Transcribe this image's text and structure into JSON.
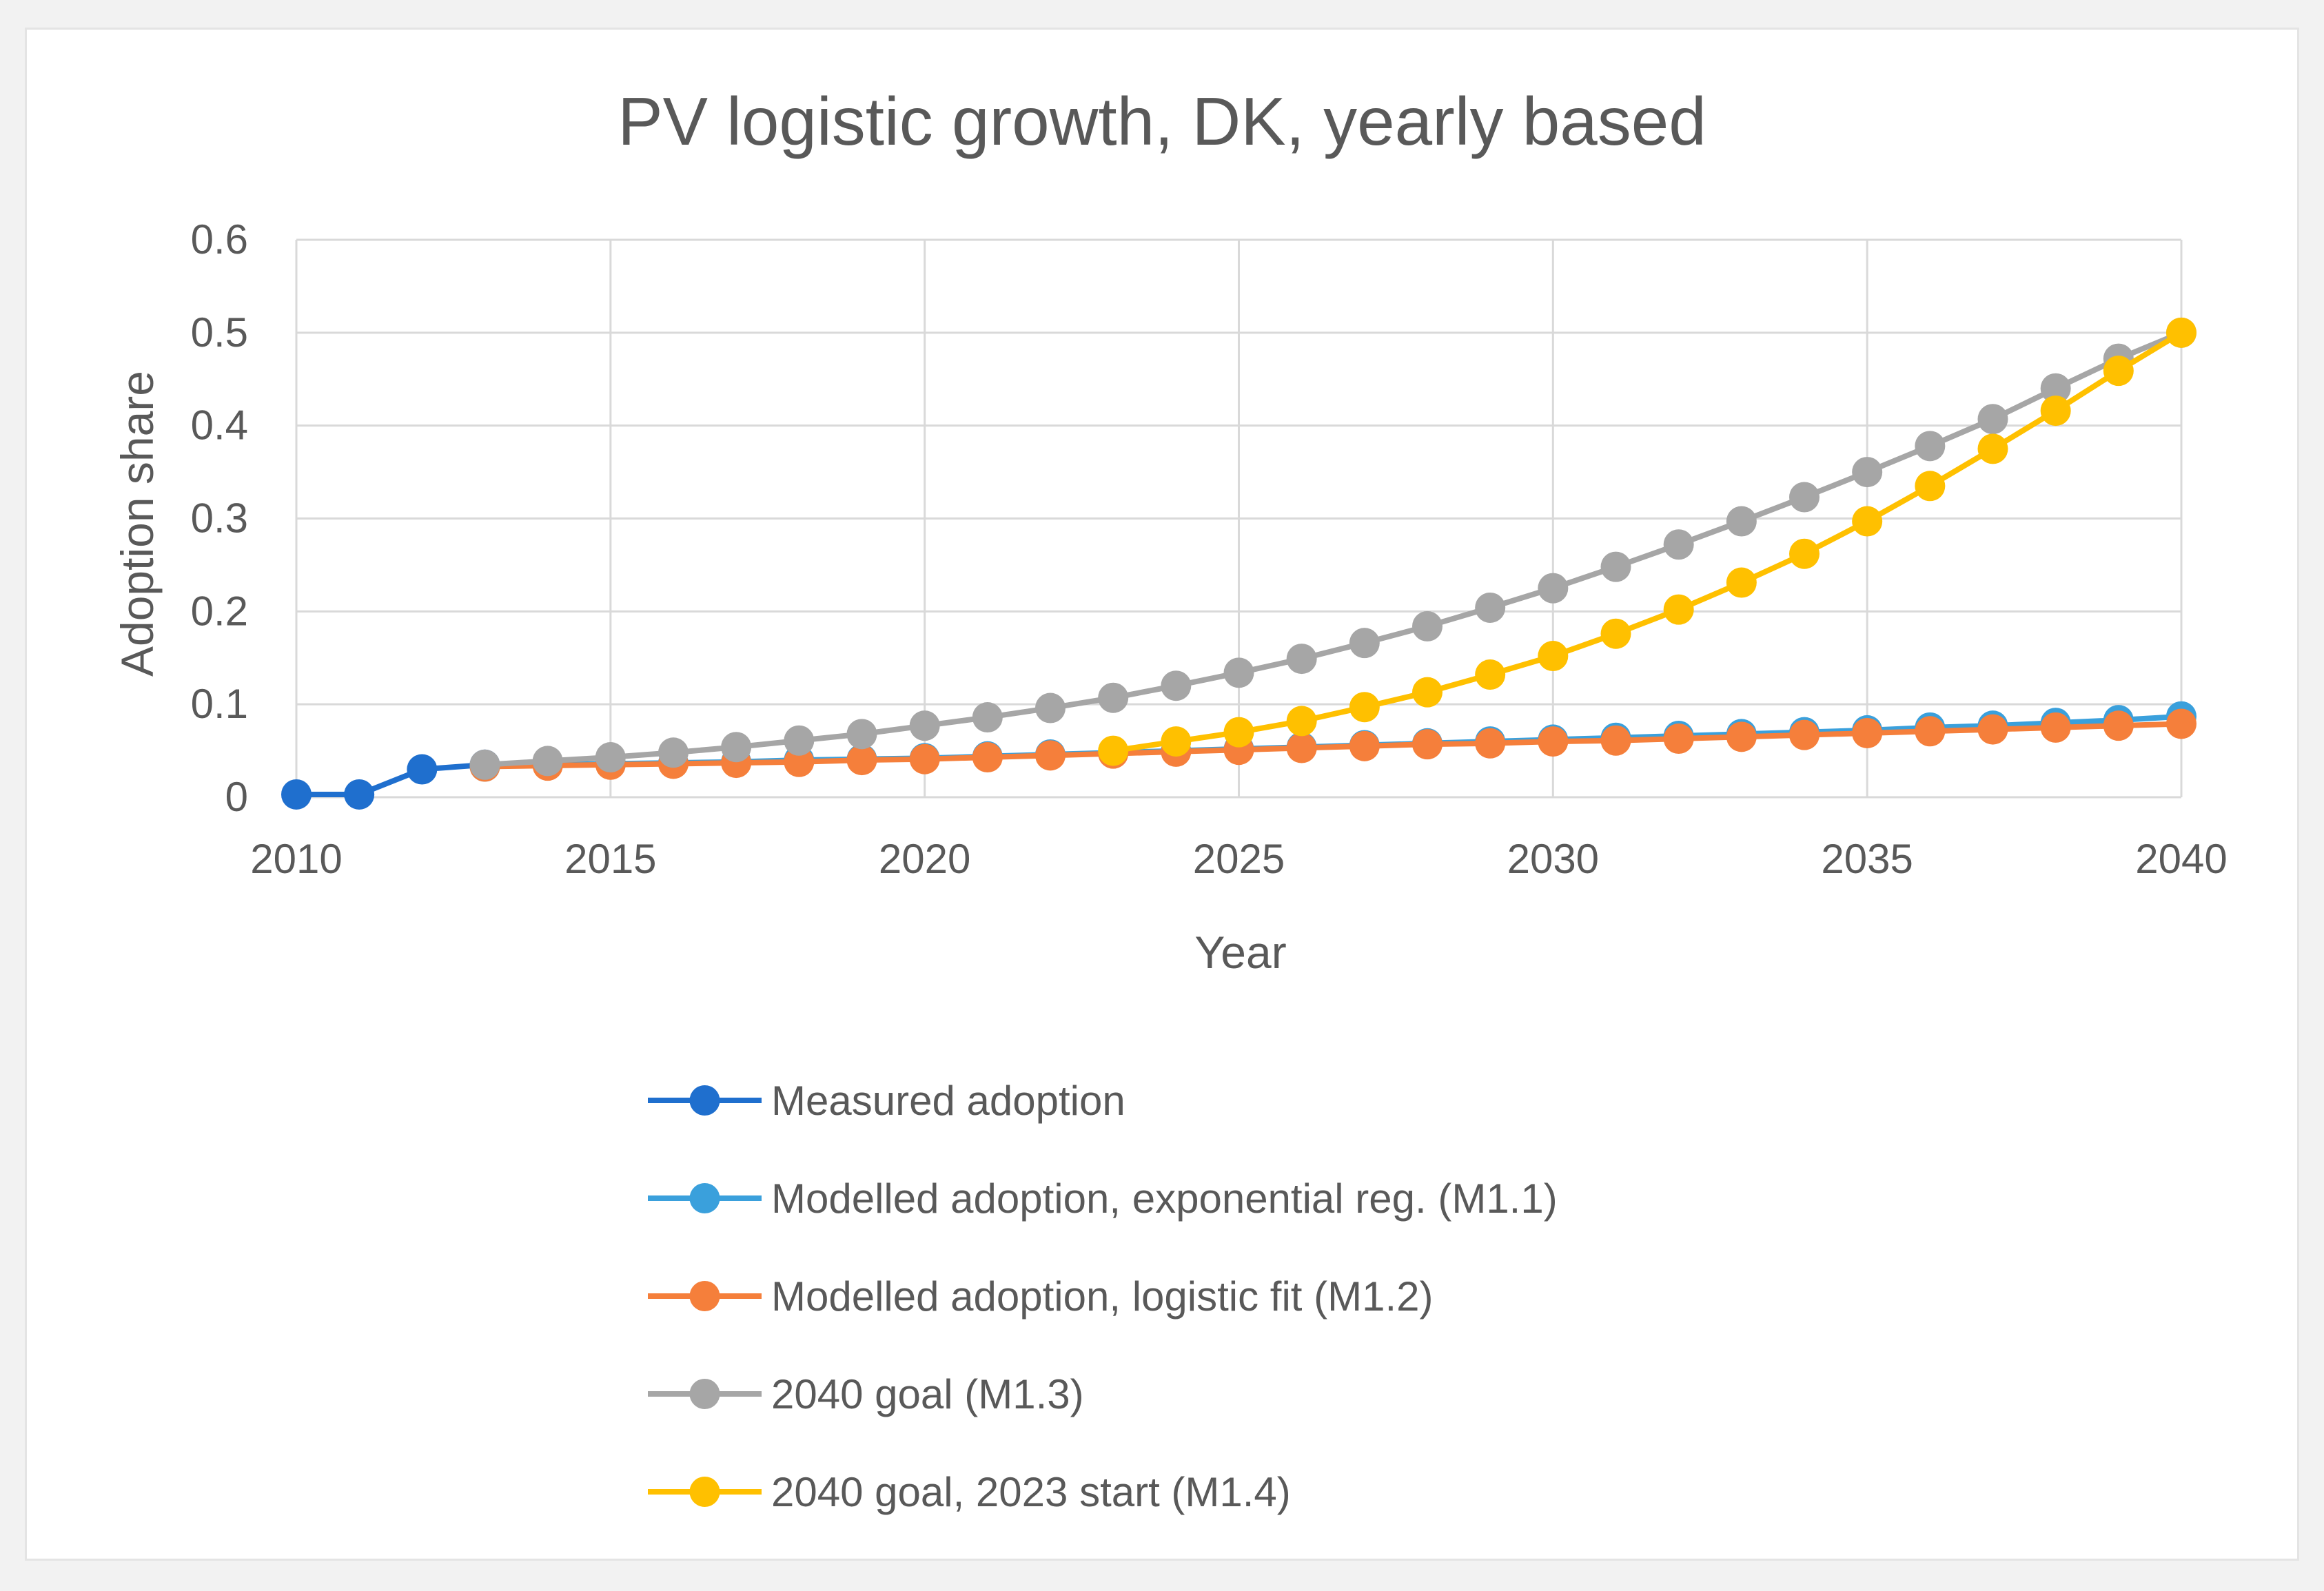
{
  "chart_data": {
    "type": "line",
    "title": "PV logistic growth, DK, yearly based",
    "xlabel": "Year",
    "ylabel": "Adoption share",
    "xlim": [
      2010,
      2040
    ],
    "ylim": [
      0,
      0.6
    ],
    "x_ticks": [
      2010,
      2015,
      2020,
      2025,
      2030,
      2035,
      2040
    ],
    "x_tick_labels": [
      "2010",
      "2015",
      "2020",
      "2025",
      "2030",
      "2035",
      "2040"
    ],
    "y_ticks": [
      0,
      0.1,
      0.2,
      0.3,
      0.4,
      0.5,
      0.6
    ],
    "y_tick_labels": [
      "0",
      "0.1",
      "0.2",
      "0.3",
      "0.4",
      "0.5",
      "0.6"
    ],
    "grid": true,
    "legend_position": "bottom",
    "series": [
      {
        "name": "Measured adoption",
        "color": "#1f6fce",
        "x": [
          2010,
          2011,
          2012,
          2013
        ],
        "values": [
          0.003,
          0.003,
          0.03,
          0.035
        ]
      },
      {
        "name": "Modelled adoption, exponential reg. (M1.1)",
        "color": "#3aa0dc",
        "x": [
          2013,
          2014,
          2015,
          2016,
          2017,
          2018,
          2019,
          2020,
          2021,
          2022,
          2023,
          2024,
          2025,
          2026,
          2027,
          2028,
          2029,
          2030,
          2031,
          2032,
          2033,
          2034,
          2035,
          2036,
          2037,
          2038,
          2039,
          2040
        ],
        "values": [
          0.033,
          0.035,
          0.036,
          0.037,
          0.038,
          0.04,
          0.041,
          0.042,
          0.044,
          0.046,
          0.048,
          0.05,
          0.052,
          0.054,
          0.056,
          0.058,
          0.06,
          0.062,
          0.064,
          0.066,
          0.068,
          0.07,
          0.072,
          0.075,
          0.077,
          0.08,
          0.083,
          0.087
        ]
      },
      {
        "name": "Modelled adoption, logistic fit (M1.2)",
        "color": "#f57f3b",
        "x": [
          2013,
          2014,
          2015,
          2016,
          2017,
          2018,
          2019,
          2020,
          2021,
          2022,
          2023,
          2024,
          2025,
          2026,
          2027,
          2028,
          2029,
          2030,
          2031,
          2032,
          2033,
          2034,
          2035,
          2036,
          2037,
          2038,
          2039,
          2040
        ],
        "values": [
          0.033,
          0.034,
          0.035,
          0.036,
          0.037,
          0.038,
          0.04,
          0.041,
          0.043,
          0.045,
          0.047,
          0.049,
          0.051,
          0.053,
          0.055,
          0.057,
          0.058,
          0.06,
          0.061,
          0.063,
          0.065,
          0.067,
          0.069,
          0.071,
          0.073,
          0.075,
          0.077,
          0.079
        ]
      },
      {
        "name": "2040 goal (M1.3)",
        "color": "#a6a6a6",
        "x": [
          2013,
          2014,
          2015,
          2016,
          2017,
          2018,
          2019,
          2020,
          2021,
          2022,
          2023,
          2024,
          2025,
          2026,
          2027,
          2028,
          2029,
          2030,
          2031,
          2032,
          2033,
          2034,
          2035,
          2036,
          2037,
          2038,
          2039,
          2040
        ],
        "values": [
          0.035,
          0.039,
          0.043,
          0.048,
          0.054,
          0.061,
          0.068,
          0.077,
          0.086,
          0.096,
          0.107,
          0.12,
          0.134,
          0.149,
          0.166,
          0.184,
          0.204,
          0.225,
          0.248,
          0.272,
          0.297,
          0.323,
          0.35,
          0.378,
          0.407,
          0.44,
          0.472,
          0.5
        ]
      },
      {
        "name": "2040 goal, 2023 start (M1.4)",
        "color": "#ffc000",
        "x": [
          2023,
          2024,
          2025,
          2026,
          2027,
          2028,
          2029,
          2030,
          2031,
          2032,
          2033,
          2034,
          2035,
          2036,
          2037,
          2038,
          2039,
          2040
        ],
        "values": [
          0.05,
          0.06,
          0.07,
          0.082,
          0.097,
          0.113,
          0.132,
          0.152,
          0.176,
          0.202,
          0.231,
          0.262,
          0.297,
          0.335,
          0.375,
          0.416,
          0.459,
          0.5
        ]
      }
    ]
  }
}
